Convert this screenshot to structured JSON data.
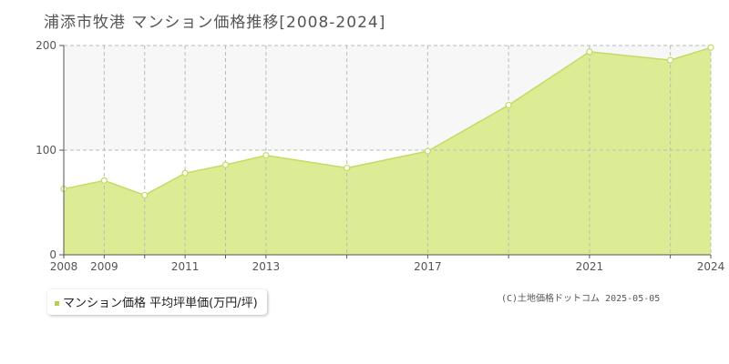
{
  "title": "浦添市牧港 マンション価格推移[2008-2024]",
  "legend": {
    "label": "マンション価格 平均坪単価(万円/坪)"
  },
  "copyright": "(C)土地価格ドットコム 2025-05-05",
  "colors": {
    "fill": "#dcec94",
    "line": "#c2dc62",
    "grid": "#bbbbbb",
    "axis": "#555555",
    "upper_band": "#f7f7f7",
    "text": "#555555",
    "legend_marker": "#b5d34a"
  },
  "chart_data": {
    "type": "area",
    "title": "浦添市牧港 マンション価格推移[2008-2024]",
    "xlabel": "",
    "ylabel": "",
    "x": [
      2008,
      2009,
      2010,
      2011,
      2012,
      2013,
      2015,
      2017,
      2019,
      2021,
      2023,
      2024
    ],
    "series": [
      {
        "name": "マンション価格 平均坪単価(万円/坪)",
        "values": [
          63,
          71,
          57,
          78,
          86,
          95,
          83,
          99,
          143,
          194,
          186,
          198
        ]
      }
    ],
    "xlim": [
      2008,
      2024
    ],
    "ylim": [
      0,
      200
    ],
    "x_ticks": [
      2008,
      2009,
      2011,
      2013,
      2017,
      2021,
      2024
    ],
    "x_gridlines": [
      2009,
      2010,
      2011,
      2012,
      2013,
      2015,
      2017,
      2019,
      2021,
      2023
    ],
    "y_ticks": [
      0,
      100,
      200
    ],
    "grid": true,
    "legend_position": "bottom-left"
  }
}
